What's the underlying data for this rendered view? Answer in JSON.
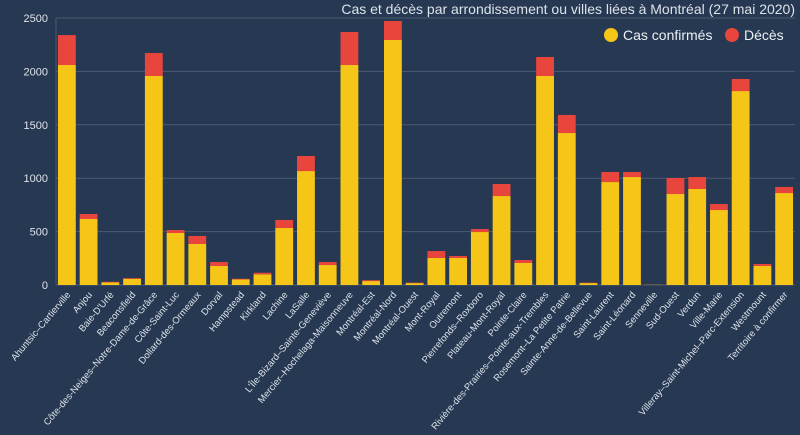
{
  "chart_data": {
    "type": "bar",
    "stacked": true,
    "title": "Cas et décès par arrondissement ou villes liées à Montréal (27 mai 2020)",
    "xlabel": "",
    "ylabel": "",
    "ylim": [
      0,
      2500
    ],
    "yticks": [
      0,
      500,
      1000,
      1500,
      2000,
      2500
    ],
    "grid": true,
    "legend_position": "top-right",
    "colors": {
      "background": "#263852",
      "confirmed": "#f5c518",
      "deaths": "#e8453c",
      "grid": "#4a5b73",
      "text": "#dde3ea"
    },
    "categories": [
      "Ahuntsic–Cartierville",
      "Anjou",
      "Baie-D'Urfé",
      "Beaconsfield",
      "Côte-des-Neiges–Notre-Dame-de-Grâce",
      "Côte-Saint-Luc",
      "Dollard-des-Ormeaux",
      "Dorval",
      "Hampstead",
      "Kirkland",
      "Lachine",
      "LaSalle",
      "L'Île-Bizard–Sainte-Geneviève",
      "Mercier–Hochelaga-Maisonneuve",
      "Montréal-Est",
      "Montréal-Nord",
      "Montréal-Ouest",
      "Mont-Royal",
      "Outremont",
      "Pierrefonds–Roxboro",
      "Plateau-Mont-Royal",
      "Pointe-Claire",
      "Rivière-des-Prairies–Pointe-aux-Trembles",
      "Rosemont–La Petite Patrie",
      "Sainte-Anne-de-Bellevue",
      "Saint-Laurent",
      "Saint-Léonard",
      "Senneville",
      "Sud-Ouest",
      "Verdun",
      "Ville-Marie",
      "Villeray–Saint-Michel–Parc-Extension",
      "Westmount",
      "Territoire à confirmer"
    ],
    "series": [
      {
        "name": "Cas confirmés",
        "values": [
          2060,
          618,
          25,
          58,
          1957,
          487,
          384,
          178,
          52,
          100,
          534,
          1067,
          187,
          2060,
          37,
          2294,
          18,
          253,
          253,
          496,
          833,
          206,
          1957,
          1423,
          18,
          964,
          1011,
          2,
          852,
          899,
          702,
          1816,
          178,
          861
        ]
      },
      {
        "name": "Décès",
        "values": [
          280,
          47,
          5,
          7,
          215,
          28,
          75,
          37,
          6,
          15,
          75,
          141,
          28,
          309,
          8,
          178,
          4,
          65,
          19,
          28,
          113,
          28,
          178,
          169,
          4,
          94,
          47,
          1,
          150,
          112,
          56,
          113,
          19,
          57
        ]
      }
    ]
  }
}
